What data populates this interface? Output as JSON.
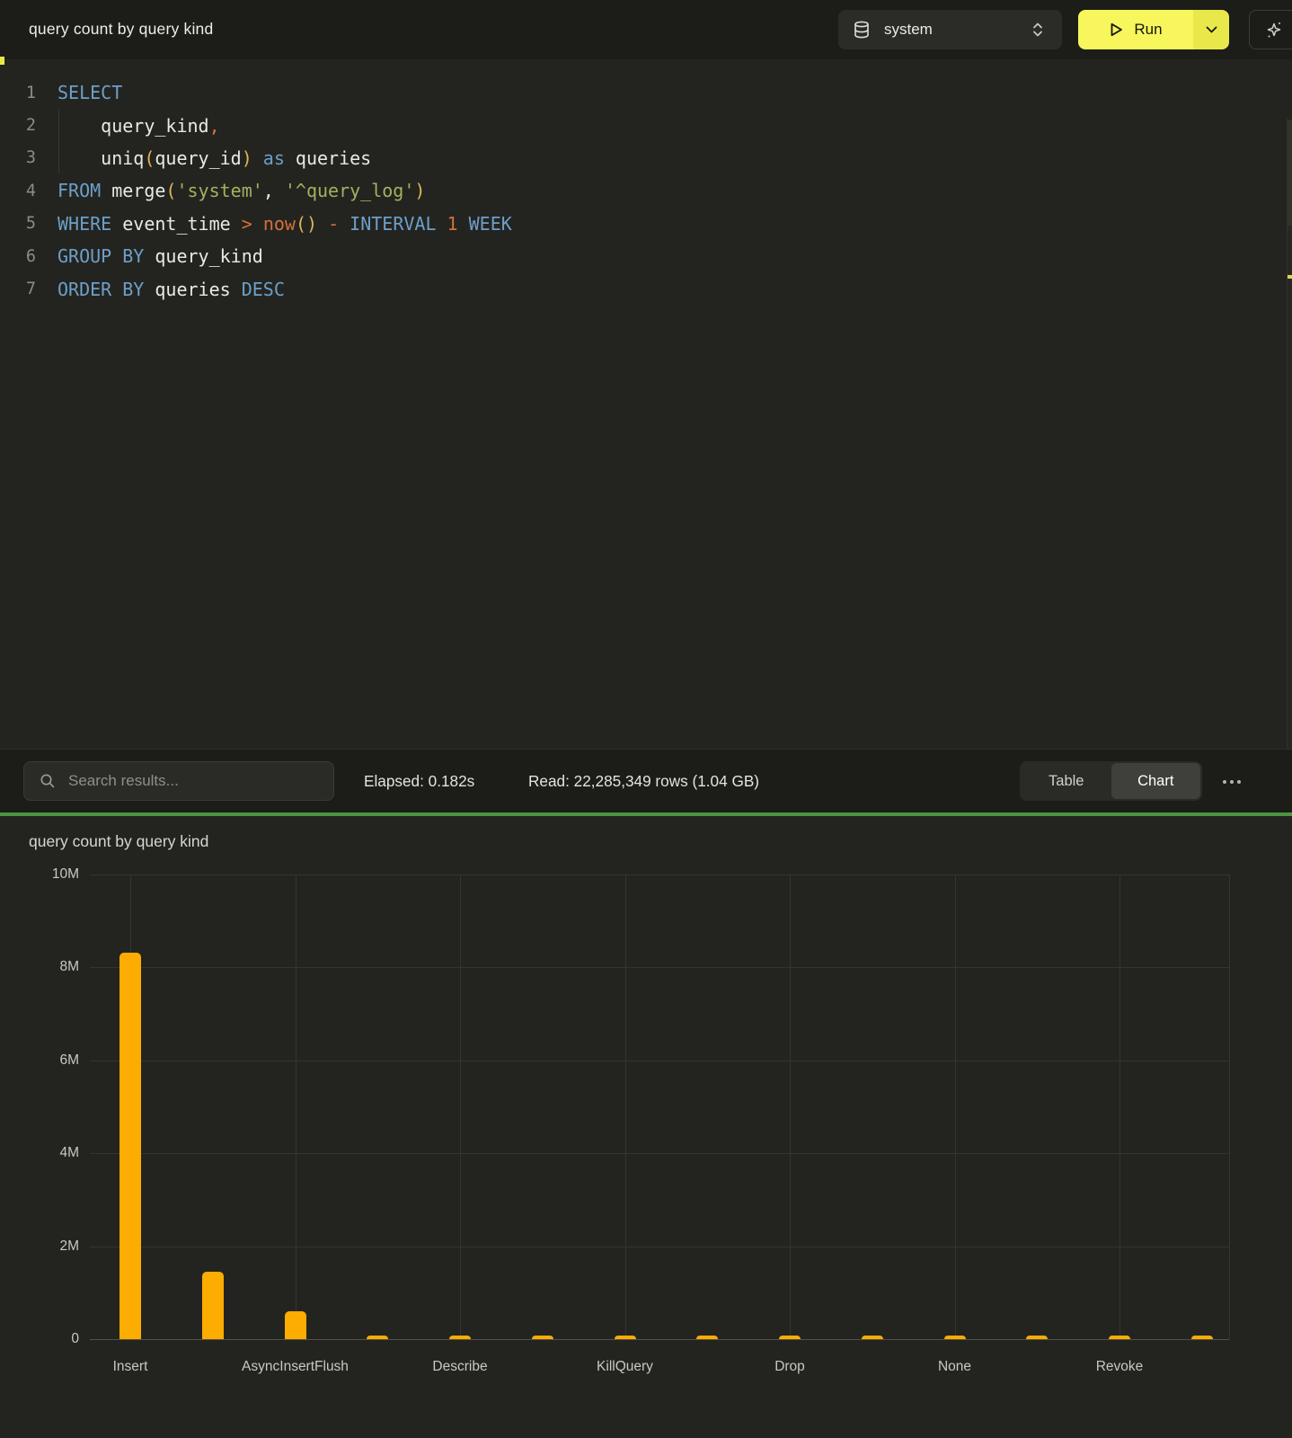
{
  "colors": {
    "accent_yellow": "#F7F65C",
    "bar_orange": "#FDAC02",
    "divider_green": "#4C9540",
    "keyword_blue": "#6E9FC9",
    "string_olive": "#A3B15E",
    "paren_gold": "#E0B556",
    "operator_orange": "#D4713A"
  },
  "header": {
    "title": "query count by query kind",
    "database_selector": {
      "value": "system"
    },
    "run_button": {
      "label": "Run"
    }
  },
  "editor": {
    "lines": [
      {
        "n": "1",
        "tokens": [
          [
            "kw",
            "SELECT"
          ]
        ]
      },
      {
        "n": "2",
        "tokens": [
          [
            "id",
            "    query_kind"
          ],
          [
            "op",
            ","
          ]
        ]
      },
      {
        "n": "3",
        "tokens": [
          [
            "id",
            "    uniq"
          ],
          [
            "pa",
            "("
          ],
          [
            "id",
            "query_id"
          ],
          [
            "pa",
            ")"
          ],
          [
            "id",
            " "
          ],
          [
            "kw",
            "as"
          ],
          [
            "id",
            " queries"
          ]
        ]
      },
      {
        "n": "4",
        "tokens": [
          [
            "kw",
            "FROM"
          ],
          [
            "id",
            " merge"
          ],
          [
            "pa",
            "("
          ],
          [
            "st",
            "'system'"
          ],
          [
            "id",
            ", "
          ],
          [
            "st",
            "'^query_log'"
          ],
          [
            "pa",
            ")"
          ]
        ]
      },
      {
        "n": "5",
        "tokens": [
          [
            "kw",
            "WHERE"
          ],
          [
            "id",
            " event_time "
          ],
          [
            "op",
            ">"
          ],
          [
            "id",
            " "
          ],
          [
            "op",
            "now"
          ],
          [
            "pa",
            "()"
          ],
          [
            "id",
            " "
          ],
          [
            "op",
            "-"
          ],
          [
            "id",
            " "
          ],
          [
            "kw",
            "INTERVAL"
          ],
          [
            "op",
            " 1"
          ],
          [
            "kw",
            " WEEK"
          ]
        ]
      },
      {
        "n": "6",
        "tokens": [
          [
            "kw",
            "GROUP BY"
          ],
          [
            "id",
            " query_kind"
          ]
        ]
      },
      {
        "n": "7",
        "tokens": [
          [
            "kw",
            "ORDER BY"
          ],
          [
            "id",
            " queries "
          ],
          [
            "kw",
            "DESC"
          ]
        ]
      }
    ]
  },
  "results_bar": {
    "search_placeholder": "Search results...",
    "elapsed": "Elapsed: 0.182s",
    "read": "Read: 22,285,349 rows (1.04 GB)",
    "view_toggle": {
      "options": [
        "Table",
        "Chart"
      ],
      "active": "Chart"
    }
  },
  "chart_data": {
    "type": "bar",
    "title": "query count by query kind",
    "categories": [
      "Insert",
      "",
      "AsyncInsertFlush",
      "",
      "Describe",
      "",
      "KillQuery",
      "",
      "Drop",
      "",
      "None",
      "",
      "Revoke",
      ""
    ],
    "values": [
      8310000,
      1450000,
      590000,
      80000,
      80000,
      80000,
      80000,
      80000,
      80000,
      80000,
      80000,
      80000,
      80000,
      80000
    ],
    "xlabel": "",
    "ylabel": "",
    "ylim": [
      0,
      10000000
    ],
    "y_ticks": [
      {
        "v": 0,
        "label": "0"
      },
      {
        "v": 2000000,
        "label": "2M"
      },
      {
        "v": 4000000,
        "label": "4M"
      },
      {
        "v": 6000000,
        "label": "6M"
      },
      {
        "v": 8000000,
        "label": "8M"
      },
      {
        "v": 10000000,
        "label": "10M"
      }
    ],
    "grid": true,
    "legend": false,
    "bar_color": "#FDAC02"
  }
}
